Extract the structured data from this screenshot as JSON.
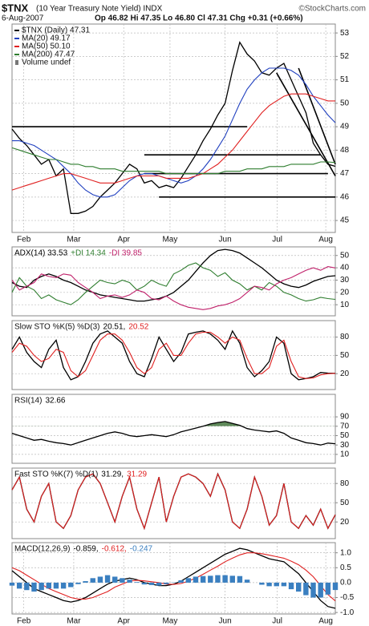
{
  "header": {
    "symbol": "$TNX",
    "name": "(10 Year Treasury Note Yield) INDX",
    "date": "6-Aug-2007",
    "quote": "Op 46.82 Hi 47.35 Lo 46.80 Cl 47.31 Chg +0.31 (+0.66%)",
    "watermark": "©StockCharts.com"
  },
  "chart_data": [
    {
      "type": "line",
      "legend": "column",
      "grid": true,
      "xlim": [
        0,
        44
      ],
      "ylim": [
        44.49,
        53.38
      ],
      "yticks": [
        45,
        46,
        47,
        48,
        49,
        50,
        51,
        52,
        53
      ],
      "xticks": [
        {
          "value": 1.6,
          "label": "Feb"
        },
        {
          "value": 8.4,
          "label": "Mar"
        },
        {
          "value": 15.2,
          "label": "Apr"
        },
        {
          "value": 21.5,
          "label": "May"
        },
        {
          "value": 29,
          "label": "Jun"
        },
        {
          "value": 36.1,
          "label": "Jul"
        },
        {
          "value": 42.7,
          "label": "Aug"
        }
      ],
      "series": [
        {
          "name": "$TNX (Daily) 47.31",
          "color": "#000000",
          "values": [
            48.9,
            48.5,
            48.2,
            47.8,
            47.4,
            47.6,
            46.9,
            47.2,
            45.3,
            45.3,
            45.4,
            45.6,
            46.0,
            46.3,
            46.6,
            47.0,
            47.4,
            47.2,
            46.6,
            46.7,
            46.4,
            46.5,
            46.4,
            46.8,
            47.3,
            47.8,
            48.4,
            48.9,
            49.5,
            50.0,
            51.4,
            52.6,
            52.1,
            51.8,
            51.3,
            51.2,
            51.5,
            51.7,
            51.0,
            50.3,
            49.6,
            48.3,
            47.8,
            47.4,
            47.31
          ]
        },
        {
          "name": "MA(20) 49.17",
          "color": "#1f3fbf",
          "values": [
            48.4,
            48.4,
            48.3,
            48.2,
            48.0,
            47.8,
            47.6,
            47.3,
            47.0,
            46.6,
            46.3,
            46.1,
            46.0,
            46.0,
            46.1,
            46.4,
            46.7,
            46.9,
            47.0,
            47.0,
            46.9,
            46.8,
            46.7,
            46.6,
            46.7,
            46.9,
            47.2,
            47.6,
            48.1,
            48.6,
            49.3,
            50.0,
            50.6,
            51.0,
            51.3,
            51.5,
            51.5,
            51.5,
            51.4,
            51.2,
            50.8,
            50.3,
            49.9,
            49.5,
            49.17
          ]
        },
        {
          "name": "MA(50) 50.10",
          "color": "#e02020",
          "values": [
            46.3,
            46.4,
            46.5,
            46.6,
            46.7,
            46.8,
            46.9,
            47.0,
            47.0,
            46.9,
            46.8,
            46.7,
            46.6,
            46.6,
            46.6,
            46.7,
            46.8,
            46.9,
            46.9,
            46.9,
            46.9,
            46.8,
            46.8,
            46.8,
            46.8,
            46.9,
            47.0,
            47.2,
            47.4,
            47.7,
            48.0,
            48.4,
            48.8,
            49.2,
            49.6,
            49.9,
            50.1,
            50.3,
            50.4,
            50.4,
            50.4,
            50.3,
            50.2,
            50.1,
            50.1
          ]
        },
        {
          "name": "MA(200) 47.47",
          "color": "#2e7d2e",
          "values": [
            48.1,
            48.0,
            47.9,
            47.8,
            47.7,
            47.6,
            47.6,
            47.5,
            47.4,
            47.4,
            47.3,
            47.3,
            47.2,
            47.2,
            47.2,
            47.1,
            47.1,
            47.1,
            47.1,
            47.1,
            47.1,
            47.0,
            47.0,
            47.0,
            47.0,
            47.0,
            47.0,
            47.0,
            47.0,
            47.1,
            47.1,
            47.1,
            47.2,
            47.2,
            47.2,
            47.3,
            47.3,
            47.3,
            47.4,
            47.4,
            47.4,
            47.4,
            47.5,
            47.5,
            47.47
          ]
        }
      ],
      "legend_extra": "Volume undef",
      "hlines": [
        {
          "value": 49,
          "from": 0,
          "to": 32
        },
        {
          "value": 47.8,
          "from": 18,
          "to": 42
        },
        {
          "value": 47,
          "from": 18,
          "to": 43
        },
        {
          "value": 46,
          "from": 20,
          "to": 44
        }
      ],
      "trendlines": [
        {
          "x": [
            36,
            44
          ],
          "y": [
            51.3,
            46.9
          ]
        },
        {
          "x": [
            39,
            44
          ],
          "y": [
            51.5,
            47.4
          ]
        }
      ]
    },
    {
      "type": "line",
      "legend": "inline",
      "grid": true,
      "xlim": [
        0,
        44
      ],
      "ylim": [
        1,
        57
      ],
      "yticks": [
        10,
        20,
        30,
        40,
        50
      ],
      "series": [
        {
          "name": "ADX(14) 33.53",
          "color": "#000000",
          "values": [
            28,
            25,
            24,
            30,
            33,
            35,
            33,
            30,
            28,
            25,
            22,
            20,
            18,
            17,
            16,
            15,
            14,
            13,
            13,
            14,
            15,
            17,
            20,
            25,
            30,
            37,
            44,
            50,
            54,
            55,
            54,
            52,
            48,
            44,
            40,
            35,
            30,
            27,
            25,
            24,
            26,
            29,
            31,
            33,
            33.53
          ]
        },
        {
          "name": "+DI 14.34",
          "color": "#2e7d2e",
          "values": [
            20,
            32,
            25,
            22,
            15,
            18,
            14,
            12,
            10,
            14,
            20,
            25,
            30,
            28,
            27,
            30,
            28,
            22,
            25,
            30,
            27,
            25,
            35,
            38,
            42,
            44,
            40,
            38,
            33,
            36,
            30,
            27,
            22,
            25,
            22,
            28,
            25,
            20,
            18,
            15,
            13,
            14,
            16,
            15,
            14.34
          ]
        },
        {
          "name": "-DI 39.85",
          "color": "#c0206a",
          "values": [
            30,
            22,
            25,
            28,
            35,
            33,
            32,
            35,
            34,
            28,
            24,
            20,
            15,
            17,
            18,
            16,
            18,
            22,
            20,
            15,
            14,
            17,
            13,
            10,
            8,
            7,
            6,
            7,
            9,
            10,
            12,
            15,
            20,
            25,
            24,
            22,
            27,
            30,
            32,
            35,
            38,
            40,
            38,
            41,
            39.85
          ]
        }
      ]
    },
    {
      "type": "line",
      "legend": "inline",
      "title": "Slow STO %K(5) %D(3)",
      "grid": true,
      "xlim": [
        0,
        44
      ],
      "ylim": [
        -6,
        107
      ],
      "yticks": [
        20,
        50,
        80
      ],
      "series": [
        {
          "name": "20.51,",
          "color": "#000000",
          "values": [
            60,
            80,
            55,
            40,
            30,
            60,
            75,
            30,
            10,
            15,
            40,
            70,
            85,
            90,
            80,
            70,
            40,
            20,
            15,
            45,
            80,
            60,
            40,
            55,
            85,
            88,
            90,
            85,
            75,
            60,
            90,
            70,
            30,
            15,
            25,
            40,
            80,
            70,
            20,
            10,
            12,
            15,
            22,
            21,
            20.51
          ]
        },
        {
          "name": "20.52",
          "color": "#e02020",
          "values": [
            55,
            70,
            65,
            50,
            40,
            45,
            60,
            55,
            25,
            15,
            25,
            50,
            75,
            85,
            85,
            75,
            55,
            30,
            20,
            30,
            60,
            70,
            50,
            50,
            70,
            85,
            88,
            88,
            80,
            70,
            80,
            75,
            45,
            20,
            20,
            30,
            65,
            75,
            40,
            15,
            12,
            13,
            18,
            20,
            20.52
          ]
        }
      ]
    },
    {
      "type": "line",
      "legend": "inline",
      "title": "RSI(14)",
      "grid": true,
      "xlim": [
        0,
        44
      ],
      "ylim": [
        -9,
        138
      ],
      "yticks": [
        10,
        30,
        50,
        70,
        90
      ],
      "fill_above": 70,
      "fill_color": "#5f8a5a",
      "series": [
        {
          "name": "32.66",
          "color": "#000000",
          "values": [
            55,
            50,
            45,
            40,
            42,
            38,
            35,
            33,
            30,
            35,
            40,
            45,
            50,
            55,
            58,
            55,
            50,
            48,
            50,
            52,
            50,
            48,
            52,
            58,
            62,
            66,
            70,
            75,
            78,
            80,
            76,
            72,
            65,
            62,
            60,
            58,
            60,
            55,
            45,
            40,
            35,
            33,
            30,
            34,
            32.66
          ]
        }
      ]
    },
    {
      "type": "line",
      "legend": "inline",
      "title": "Fast STO %K(7) %D(1)",
      "grid": true,
      "xlim": [
        0,
        44
      ],
      "ylim": [
        -6,
        104
      ],
      "yticks": [
        20,
        50,
        80
      ],
      "series": [
        {
          "name": "31.29,",
          "color": "#000000",
          "values": [
            70,
            90,
            40,
            20,
            60,
            80,
            20,
            10,
            30,
            70,
            90,
            95,
            80,
            50,
            20,
            60,
            90,
            40,
            10,
            50,
            90,
            20,
            60,
            90,
            95,
            90,
            80,
            60,
            95,
            70,
            20,
            10,
            40,
            90,
            60,
            15,
            30,
            80,
            20,
            10,
            30,
            15,
            40,
            10,
            31.29
          ]
        },
        {
          "name": "31.29",
          "color": "#e02020",
          "values": [
            70,
            90,
            40,
            20,
            60,
            80,
            20,
            10,
            30,
            70,
            90,
            95,
            80,
            50,
            20,
            60,
            90,
            40,
            10,
            50,
            90,
            20,
            60,
            90,
            95,
            90,
            80,
            60,
            95,
            70,
            20,
            10,
            40,
            90,
            60,
            15,
            30,
            80,
            20,
            10,
            30,
            15,
            40,
            10,
            31.29
          ]
        }
      ]
    },
    {
      "type": "line",
      "legend": "inline",
      "title": "MACD(12,26,9)",
      "grid": true,
      "xlim": [
        0,
        44
      ],
      "ylim": [
        -1.05,
        1.34
      ],
      "yticks": [
        {
          "value": -1,
          "label": "-1.0"
        },
        {
          "value": -0.5,
          "label": "-0.5"
        },
        {
          "value": 0,
          "label": "0.0"
        },
        {
          "value": 0.5,
          "label": "0.5"
        },
        {
          "value": 1,
          "label": "1.0"
        }
      ],
      "xticks": [
        {
          "value": 1.6,
          "label": "Feb"
        },
        {
          "value": 8.4,
          "label": "Mar"
        },
        {
          "value": 15.2,
          "label": "Apr"
        },
        {
          "value": 21.5,
          "label": "May"
        },
        {
          "value": 29,
          "label": "Jun"
        },
        {
          "value": 36.1,
          "label": "Jul"
        },
        {
          "value": 42.7,
          "label": "Aug"
        }
      ],
      "series": [
        {
          "name": "-0.859,",
          "color": "#000000",
          "values": [
            0.4,
            0.2,
            0.0,
            -0.2,
            -0.3,
            -0.4,
            -0.5,
            -0.6,
            -0.65,
            -0.6,
            -0.5,
            -0.35,
            -0.2,
            -0.05,
            0.05,
            0.1,
            0.15,
            0.1,
            0.0,
            -0.05,
            -0.1,
            -0.1,
            -0.05,
            0.05,
            0.2,
            0.35,
            0.5,
            0.65,
            0.8,
            0.95,
            1.05,
            1.15,
            1.1,
            1.0,
            0.9,
            0.8,
            0.75,
            0.7,
            0.5,
            0.3,
            0.0,
            -0.3,
            -0.6,
            -0.8,
            -0.859
          ]
        },
        {
          "name": "-0.612,",
          "color": "#e02020",
          "values": [
            0.5,
            0.4,
            0.25,
            0.1,
            -0.05,
            -0.2,
            -0.3,
            -0.4,
            -0.5,
            -0.55,
            -0.55,
            -0.5,
            -0.4,
            -0.3,
            -0.15,
            -0.05,
            0.05,
            0.08,
            0.06,
            0.03,
            0.0,
            -0.05,
            -0.06,
            -0.03,
            0.05,
            0.15,
            0.28,
            0.42,
            0.55,
            0.7,
            0.82,
            0.93,
            1.0,
            1.0,
            0.97,
            0.92,
            0.87,
            0.82,
            0.72,
            0.6,
            0.42,
            0.2,
            -0.1,
            -0.4,
            -0.612
          ]
        },
        {
          "name": "-0.247",
          "color": "#3a7fc0",
          "type": "bar",
          "values": [
            -0.1,
            -0.2,
            -0.25,
            -0.3,
            -0.25,
            -0.2,
            -0.2,
            -0.2,
            -0.15,
            -0.05,
            0.05,
            0.15,
            0.2,
            0.25,
            0.2,
            0.15,
            0.1,
            0.02,
            -0.06,
            -0.08,
            -0.1,
            -0.05,
            0.01,
            0.08,
            0.15,
            0.2,
            0.22,
            0.23,
            0.25,
            0.25,
            0.23,
            0.22,
            0.1,
            0.0,
            -0.07,
            -0.12,
            -0.12,
            -0.12,
            -0.22,
            -0.3,
            -0.42,
            -0.5,
            -0.5,
            -0.4,
            -0.247
          ]
        }
      ]
    }
  ]
}
